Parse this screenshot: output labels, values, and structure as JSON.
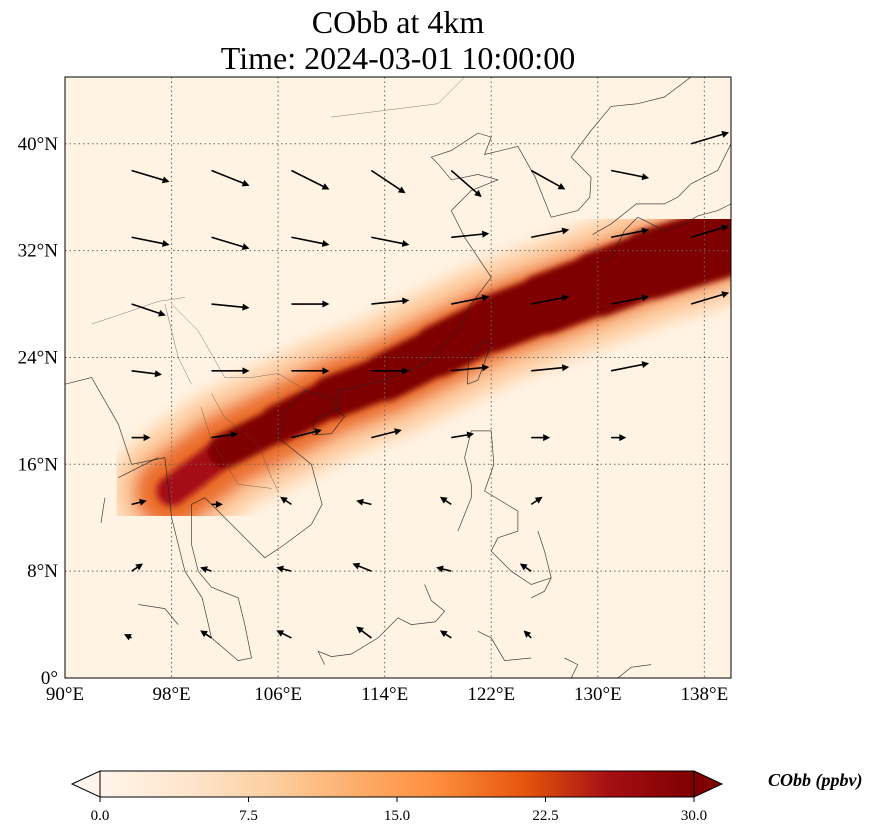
{
  "title": {
    "line1": "CObb at 4km",
    "line2": "Time: 2024-03-01 10:00:00"
  },
  "colorbar": {
    "label": "CObb (ppbv)",
    "ticks": [
      "0.0",
      "7.5",
      "15.0",
      "22.5",
      "30.0"
    ],
    "min": 0,
    "max": 30,
    "colors": [
      "#fff5eb",
      "#fee6ce",
      "#fdd0a2",
      "#fdae6b",
      "#fd8d3c",
      "#e6550d",
      "#a50f15",
      "#7f0000"
    ]
  },
  "chart_data": {
    "type": "heatmap",
    "variable": "CObb",
    "units": "ppbv",
    "xlabel": "",
    "ylabel": "",
    "xlim": [
      90,
      140
    ],
    "ylim": [
      0,
      45
    ],
    "x_ticks": [
      90,
      98,
      106,
      114,
      122,
      130,
      138
    ],
    "x_tick_labels": [
      "90°E",
      "98°E",
      "106°E",
      "114°E",
      "122°E",
      "130°E",
      "138°E"
    ],
    "y_ticks": [
      0,
      8,
      16,
      24,
      32,
      40
    ],
    "y_tick_labels": [
      "0°",
      "8°N",
      "16°N",
      "24°N",
      "32°N",
      "40°N"
    ],
    "grid": true,
    "plume": [
      {
        "lon": 98,
        "lat": 14,
        "value": 20
      },
      {
        "lon": 102,
        "lat": 17,
        "value": 28
      },
      {
        "lon": 106,
        "lat": 19,
        "value": 30
      },
      {
        "lon": 110,
        "lat": 21,
        "value": 30
      },
      {
        "lon": 114,
        "lat": 22.5,
        "value": 30
      },
      {
        "lon": 118,
        "lat": 24.5,
        "value": 30
      },
      {
        "lon": 122,
        "lat": 26.5,
        "value": 30
      },
      {
        "lon": 126,
        "lat": 28,
        "value": 30
      },
      {
        "lon": 130,
        "lat": 29.5,
        "value": 30
      },
      {
        "lon": 134,
        "lat": 31,
        "value": 30
      },
      {
        "lon": 139,
        "lat": 32.5,
        "value": 30
      }
    ],
    "winds": [
      {
        "lon": 95,
        "lat": 38,
        "u": 1.0,
        "v": -0.3
      },
      {
        "lon": 101,
        "lat": 38,
        "u": 1.0,
        "v": -0.4
      },
      {
        "lon": 107,
        "lat": 38,
        "u": 1.0,
        "v": -0.5
      },
      {
        "lon": 113,
        "lat": 38,
        "u": 0.9,
        "v": -0.6
      },
      {
        "lon": 119,
        "lat": 38,
        "u": 0.8,
        "v": -0.7
      },
      {
        "lon": 125,
        "lat": 38,
        "u": 0.9,
        "v": -0.5
      },
      {
        "lon": 131,
        "lat": 38,
        "u": 1.0,
        "v": -0.2
      },
      {
        "lon": 137,
        "lat": 40,
        "u": 1.0,
        "v": 0.3
      },
      {
        "lon": 95,
        "lat": 33,
        "u": 1.0,
        "v": -0.2
      },
      {
        "lon": 101,
        "lat": 33,
        "u": 1.0,
        "v": -0.3
      },
      {
        "lon": 107,
        "lat": 33,
        "u": 1.0,
        "v": -0.2
      },
      {
        "lon": 113,
        "lat": 33,
        "u": 1.0,
        "v": -0.2
      },
      {
        "lon": 119,
        "lat": 33,
        "u": 1.0,
        "v": 0.1
      },
      {
        "lon": 125,
        "lat": 33,
        "u": 1.0,
        "v": 0.2
      },
      {
        "lon": 131,
        "lat": 33,
        "u": 1.0,
        "v": 0.2
      },
      {
        "lon": 137,
        "lat": 33,
        "u": 1.0,
        "v": 0.3
      },
      {
        "lon": 95,
        "lat": 28,
        "u": 0.9,
        "v": -0.3
      },
      {
        "lon": 101,
        "lat": 28,
        "u": 1.0,
        "v": -0.1
      },
      {
        "lon": 107,
        "lat": 28,
        "u": 1.0,
        "v": 0.0
      },
      {
        "lon": 113,
        "lat": 28,
        "u": 1.0,
        "v": 0.1
      },
      {
        "lon": 119,
        "lat": 28,
        "u": 1.0,
        "v": 0.2
      },
      {
        "lon": 125,
        "lat": 28,
        "u": 1.0,
        "v": 0.2
      },
      {
        "lon": 131,
        "lat": 28,
        "u": 1.0,
        "v": 0.2
      },
      {
        "lon": 137,
        "lat": 28,
        "u": 1.0,
        "v": 0.3
      },
      {
        "lon": 95,
        "lat": 23,
        "u": 0.8,
        "v": -0.1
      },
      {
        "lon": 101,
        "lat": 23,
        "u": 1.0,
        "v": 0.0
      },
      {
        "lon": 107,
        "lat": 23,
        "u": 1.0,
        "v": 0.0
      },
      {
        "lon": 113,
        "lat": 23,
        "u": 1.0,
        "v": 0.0
      },
      {
        "lon": 119,
        "lat": 23,
        "u": 1.0,
        "v": 0.1
      },
      {
        "lon": 125,
        "lat": 23,
        "u": 1.0,
        "v": 0.1
      },
      {
        "lon": 131,
        "lat": 23,
        "u": 1.0,
        "v": 0.2
      },
      {
        "lon": 95,
        "lat": 18,
        "u": 0.5,
        "v": 0.0
      },
      {
        "lon": 101,
        "lat": 18,
        "u": 0.7,
        "v": 0.1
      },
      {
        "lon": 107,
        "lat": 18,
        "u": 0.8,
        "v": 0.2
      },
      {
        "lon": 113,
        "lat": 18,
        "u": 0.8,
        "v": 0.2
      },
      {
        "lon": 119,
        "lat": 18,
        "u": 0.6,
        "v": 0.1
      },
      {
        "lon": 125,
        "lat": 18,
        "u": 0.5,
        "v": 0.0
      },
      {
        "lon": 131,
        "lat": 18,
        "u": 0.4,
        "v": 0.0
      },
      {
        "lon": 95,
        "lat": 13,
        "u": 0.4,
        "v": 0.1
      },
      {
        "lon": 101,
        "lat": 13,
        "u": 0.3,
        "v": 0.0
      },
      {
        "lon": 107,
        "lat": 13,
        "u": -0.3,
        "v": 0.2
      },
      {
        "lon": 113,
        "lat": 13,
        "u": -0.4,
        "v": 0.1
      },
      {
        "lon": 119,
        "lat": 13,
        "u": -0.3,
        "v": 0.2
      },
      {
        "lon": 125,
        "lat": 13,
        "u": 0.3,
        "v": 0.2
      },
      {
        "lon": 95,
        "lat": 8,
        "u": 0.3,
        "v": 0.2
      },
      {
        "lon": 101,
        "lat": 8,
        "u": -0.3,
        "v": 0.1
      },
      {
        "lon": 107,
        "lat": 8,
        "u": -0.4,
        "v": 0.1
      },
      {
        "lon": 113,
        "lat": 8,
        "u": -0.5,
        "v": 0.2
      },
      {
        "lon": 119,
        "lat": 8,
        "u": -0.4,
        "v": 0.1
      },
      {
        "lon": 125,
        "lat": 8,
        "u": -0.3,
        "v": 0.2
      },
      {
        "lon": 95,
        "lat": 3,
        "u": -0.2,
        "v": 0.1
      },
      {
        "lon": 101,
        "lat": 3,
        "u": -0.3,
        "v": 0.2
      },
      {
        "lon": 107,
        "lat": 3,
        "u": -0.4,
        "v": 0.2
      },
      {
        "lon": 113,
        "lat": 3,
        "u": -0.4,
        "v": 0.3
      },
      {
        "lon": 119,
        "lat": 3,
        "u": -0.3,
        "v": 0.2
      },
      {
        "lon": 125,
        "lat": 3,
        "u": -0.2,
        "v": 0.2
      }
    ]
  }
}
